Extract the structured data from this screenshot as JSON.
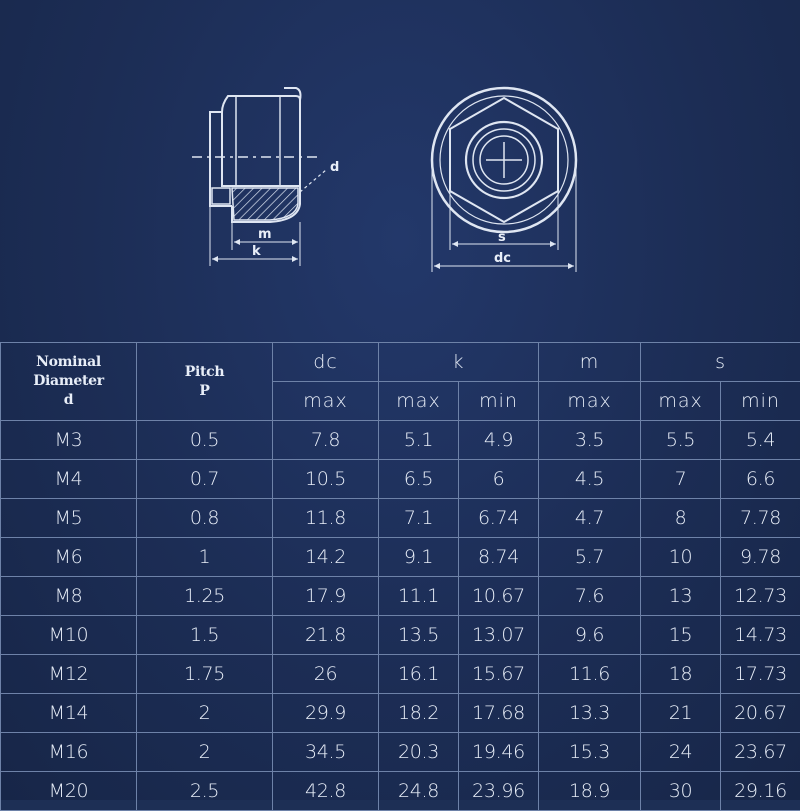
{
  "drawing": {
    "side_view_labels": {
      "d": "d",
      "m": "m",
      "k": "k"
    },
    "top_view_labels": {
      "s": "s",
      "dc": "dc"
    }
  },
  "table": {
    "col_nominal": [
      "Nominal",
      "Diameter",
      "d"
    ],
    "col_pitch": [
      "Pitch",
      "P"
    ],
    "groups": [
      "dc",
      "k",
      "m",
      "s"
    ],
    "subheaders": [
      "max",
      "max",
      "min",
      "max",
      "max",
      "min"
    ],
    "rows": [
      [
        "M3",
        "0.5",
        "7.8",
        "5.1",
        "4.9",
        "3.5",
        "5.5",
        "5.4"
      ],
      [
        "M4",
        "0.7",
        "10.5",
        "6.5",
        "6",
        "4.5",
        "7",
        "6.6"
      ],
      [
        "M5",
        "0.8",
        "11.8",
        "7.1",
        "6.74",
        "4.7",
        "8",
        "7.78"
      ],
      [
        "M6",
        "1",
        "14.2",
        "9.1",
        "8.74",
        "5.7",
        "10",
        "9.78"
      ],
      [
        "M8",
        "1.25",
        "17.9",
        "11.1",
        "10.67",
        "7.6",
        "13",
        "12.73"
      ],
      [
        "M10",
        "1.5",
        "21.8",
        "13.5",
        "13.07",
        "9.6",
        "15",
        "14.73"
      ],
      [
        "M12",
        "1.75",
        "26",
        "16.1",
        "15.67",
        "11.6",
        "18",
        "17.73"
      ],
      [
        "M14",
        "2",
        "29.9",
        "18.2",
        "17.68",
        "13.3",
        "21",
        "20.67"
      ],
      [
        "M16",
        "2",
        "34.5",
        "20.3",
        "19.46",
        "15.3",
        "24",
        "23.67"
      ],
      [
        "M20",
        "2.5",
        "42.8",
        "24.8",
        "23.96",
        "18.9",
        "30",
        "29.16"
      ]
    ]
  }
}
